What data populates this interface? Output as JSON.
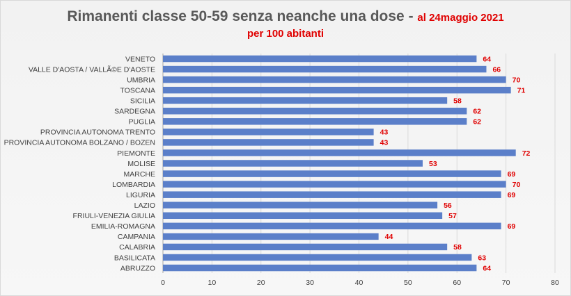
{
  "chart_data": {
    "type": "bar",
    "orientation": "horizontal",
    "title": "Rimanenti classe 50-59  senza neanche una dose - ",
    "title_highlight": "al 24maggio 2021",
    "subtitle": "per 100 abitanti",
    "categories": [
      "VENETO",
      "VALLE D'AOSTA / VALLÃ©E D'AOSTE",
      "UMBRIA",
      "TOSCANA",
      "SICILIA",
      "SARDEGNA",
      "PUGLIA",
      "PROVINCIA AUTONOMA TRENTO",
      "PROVINCIA AUTONOMA BOLZANO / BOZEN",
      "PIEMONTE",
      "MOLISE",
      "MARCHE",
      "LOMBARDIA",
      "LIGURIA",
      "LAZIO",
      "FRIULI-VENEZIA GIULIA",
      "EMILIA-ROMAGNA",
      "CAMPANIA",
      "CALABRIA",
      "BASILICATA",
      "ABRUZZO"
    ],
    "values": [
      64,
      66,
      70,
      71,
      58,
      62,
      62,
      43,
      43,
      72,
      53,
      69,
      70,
      69,
      56,
      57,
      69,
      44,
      58,
      63,
      64
    ],
    "xlim": [
      0,
      80
    ],
    "xticks": [
      0,
      10,
      20,
      30,
      40,
      50,
      60,
      70,
      80
    ],
    "grid": true,
    "colors": {
      "bar": "#5b7fc9",
      "data_label": "#e00000",
      "title": "#595959",
      "highlight": "#e00000",
      "grid": "#d9d9d9",
      "axis_text": "#404040"
    }
  }
}
